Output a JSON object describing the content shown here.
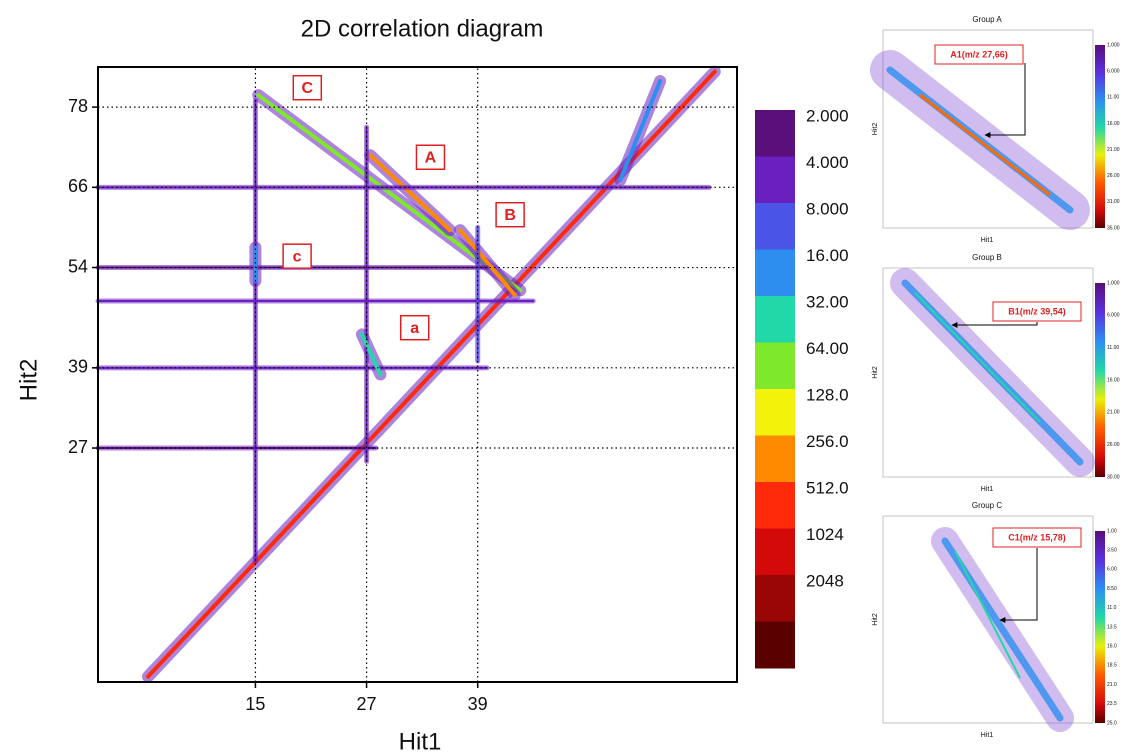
{
  "chart_data": [
    {
      "type": "heatmap",
      "title": "2D correlation diagram",
      "xlabel": "Hit1",
      "ylabel": "Hit2",
      "xlim": [
        -2,
        67
      ],
      "ylim": [
        -8,
        84
      ],
      "xticks": [
        15,
        27,
        39
      ],
      "yticks": [
        78,
        66,
        54,
        39,
        27
      ],
      "grid": "dotted",
      "ridges": [
        {
          "x": [
            3.4,
            64.6
          ],
          "y": [
            -7.2,
            83.3
          ],
          "level": 512
        },
        {
          "x": [
            15.3,
            43.6
          ],
          "y": [
            79.8,
            50.6
          ],
          "level": 64
        },
        {
          "x": [
            27.4,
            36
          ],
          "y": [
            70.8,
            59.6
          ],
          "level": 256
        },
        {
          "x": [
            37.1,
            43
          ],
          "y": [
            59.6,
            49.9
          ],
          "level": 256
        },
        {
          "x": [
            -2,
            64
          ],
          "y": [
            66,
            66
          ],
          "level": 4
        },
        {
          "x": [
            -2,
            40
          ],
          "y": [
            39,
            39
          ],
          "level": 4
        },
        {
          "x": [
            -2,
            40
          ],
          "y": [
            54,
            54
          ],
          "level": 2
        },
        {
          "x": [
            -2,
            28
          ],
          "y": [
            27,
            27
          ],
          "level": 2
        },
        {
          "x": [
            -2,
            45
          ],
          "y": [
            49,
            49
          ],
          "level": 4
        },
        {
          "x": [
            15,
            15
          ],
          "y": [
            79,
            10
          ],
          "level": 4
        },
        {
          "x": [
            27,
            27
          ],
          "y": [
            75,
            25
          ],
          "level": 4
        },
        {
          "x": [
            39,
            39
          ],
          "y": [
            60,
            40
          ],
          "level": 8
        },
        {
          "x": [
            26.5,
            28.5
          ],
          "y": [
            44,
            38
          ],
          "level": 32
        },
        {
          "x": [
            15,
            15
          ],
          "y": [
            57,
            52
          ],
          "level": 16
        },
        {
          "x": [
            54.4,
            58.7
          ],
          "y": [
            67.1,
            81.9
          ],
          "level": 16
        }
      ],
      "annotations": [
        {
          "text": "C",
          "x": 20.6,
          "y": 80.9
        },
        {
          "text": "A",
          "x": 33.9,
          "y": 70.5
        },
        {
          "text": "B",
          "x": 42.5,
          "y": 61.9
        },
        {
          "text": "c",
          "x": 19.5,
          "y": 55.7
        },
        {
          "text": "a",
          "x": 32.2,
          "y": 45.0
        }
      ],
      "colorbar": {
        "levels": [
          {
            "value": 2,
            "label": "2.000"
          },
          {
            "value": 4,
            "label": "4.000"
          },
          {
            "value": 8,
            "label": "8.000"
          },
          {
            "value": 16,
            "label": "16.00"
          },
          {
            "value": 32,
            "label": "32.00"
          },
          {
            "value": 64,
            "label": "64.00"
          },
          {
            "value": 128,
            "label": "128.0"
          },
          {
            "value": 256,
            "label": "256.0"
          },
          {
            "value": 512,
            "label": "512.0"
          },
          1024,
          2048
        ],
        "colors": [
          "#5a0f7a",
          "#6a1fc0",
          "#4a55e8",
          "#2d8ef0",
          "#20d8a8",
          "#7ee82a",
          "#f2f20a",
          "#ff8a00",
          "#ff2a0a",
          "#d40a0a",
          "#9a0505",
          "#5a0000"
        ]
      }
    },
    {
      "type": "density",
      "title": "Group A",
      "xlabel": "Hit1",
      "ylabel": "Hit2",
      "annotation": "A1(m/z 27,66)",
      "colorbar_labels": [
        {
          "value": 1,
          "label": "1.000"
        },
        {
          "value": 6,
          "label": "6.000"
        },
        {
          "value": 11,
          "label": "11.00"
        },
        {
          "value": 16,
          "label": "16.00"
        },
        {
          "value": 21,
          "label": "21.00"
        },
        {
          "value": 26,
          "label": "26.00"
        },
        {
          "value": 31,
          "label": "31.00"
        },
        {
          "value": 35,
          "label": "35.00"
        }
      ]
    },
    {
      "type": "density",
      "title": "Group B",
      "xlabel": "Hit1",
      "ylabel": "Hit2",
      "annotation": "B1(m/z 39,54)",
      "colorbar_labels": [
        {
          "value": 1,
          "label": "1.000"
        },
        {
          "value": 6,
          "label": "6.000"
        },
        {
          "value": 11,
          "label": "11.00"
        },
        {
          "value": 16,
          "label": "16.00"
        },
        {
          "value": 21,
          "label": "21.00"
        },
        {
          "value": 26,
          "label": "26.00"
        },
        {
          "value": 30,
          "label": "30.00"
        }
      ]
    },
    {
      "type": "density",
      "title": "Group C",
      "xlabel": "Hit1",
      "ylabel": "Hit2",
      "annotation": "C1(m/z 15,78)",
      "colorbar_labels": [
        {
          "value": 1,
          "label": "1.00"
        },
        {
          "value": 3.5,
          "label": "3.50"
        },
        {
          "value": 6,
          "label": "6.00"
        },
        {
          "value": 8.5,
          "label": "8.50"
        },
        {
          "value": 11,
          "label": "11.0"
        },
        {
          "value": 13.5,
          "label": "13.5"
        },
        {
          "value": 16,
          "label": "16.0"
        },
        {
          "value": 18.5,
          "label": "18.5"
        },
        {
          "value": 21,
          "label": "21.0"
        },
        {
          "value": 23.5,
          "label": "23.5"
        },
        {
          "value": 25,
          "label": "25.0"
        }
      ]
    }
  ]
}
